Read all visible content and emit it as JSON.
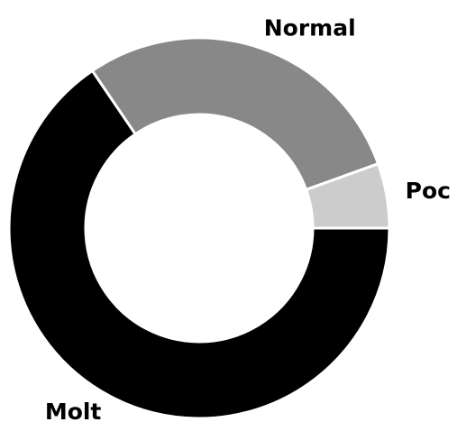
{
  "chart_data": {
    "type": "donut",
    "categories": [
      "Poc",
      "Normal",
      "Molt"
    ],
    "values": [
      5.5,
      29,
      65.5
    ],
    "colors": [
      "#cccccc",
      "#888888",
      "#000000"
    ]
  }
}
